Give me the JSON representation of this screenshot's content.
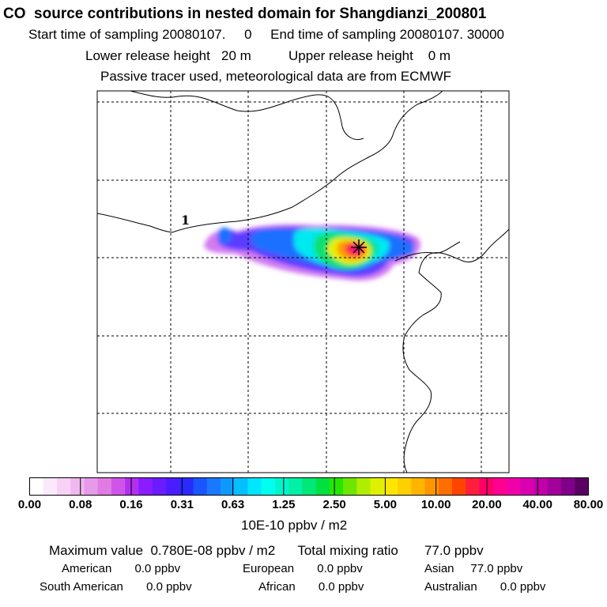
{
  "header": {
    "title": "CO  source contributions in nested domain for Shangdianzi_200801",
    "sampling": "Start time of sampling 20080107.     0     End time of sampling 20080107. 30000",
    "release": "Lower release height   20 m          Upper release height    0 m",
    "tracer": "Passive tracer used, meteorological data are from ECMWF"
  },
  "map": {
    "contour_label": "1",
    "icons": [
      "receptor-star-icon"
    ]
  },
  "colorbar": {
    "tick_labels": [
      "0.00",
      "0.08",
      "0.16",
      "0.31",
      "0.63",
      "1.25",
      "2.50",
      "5.00",
      "10.00",
      "20.00",
      "40.00",
      "80.00"
    ],
    "colors": [
      "#ffffff",
      "#fbe9fb",
      "#f6d2f6",
      "#efb8ef",
      "#e79ae9",
      "#df7be3",
      "#cf55e8",
      "#b22ff2",
      "#8a1cff",
      "#6a1cff",
      "#4a1cff",
      "#2a2aff",
      "#1a55ff",
      "#1a78ff",
      "#0e99ff",
      "#05c0ff",
      "#00e6ff",
      "#00ffee",
      "#00f5cc",
      "#00f0a8",
      "#00e878",
      "#00e040",
      "#26e600",
      "#6ee600",
      "#b0ee00",
      "#e0f000",
      "#ffe600",
      "#ffd000",
      "#ffb400",
      "#ff9600",
      "#ff6e00",
      "#ff4400",
      "#ff1e3c",
      "#ff0066",
      "#ff0090",
      "#f000a8",
      "#d800b0",
      "#c000a8",
      "#a2009a",
      "#80008a",
      "#5a0062"
    ],
    "unit": "10E-10 ppbv / m2"
  },
  "summary": {
    "maximum": "Maximum value  0.780E-08 ppbv / m2      Total mixing ratio       77.0 ppbv",
    "row1": {
      "american": "American       0.0 ppbv",
      "european": "European       0.0 ppbv",
      "asian": "Asian     77.0 ppbv"
    },
    "row2": {
      "south_american": "South American       0.0 ppbv",
      "african": "African       0.0 ppbv",
      "australian": "Australian       0.0 ppbv"
    }
  }
}
